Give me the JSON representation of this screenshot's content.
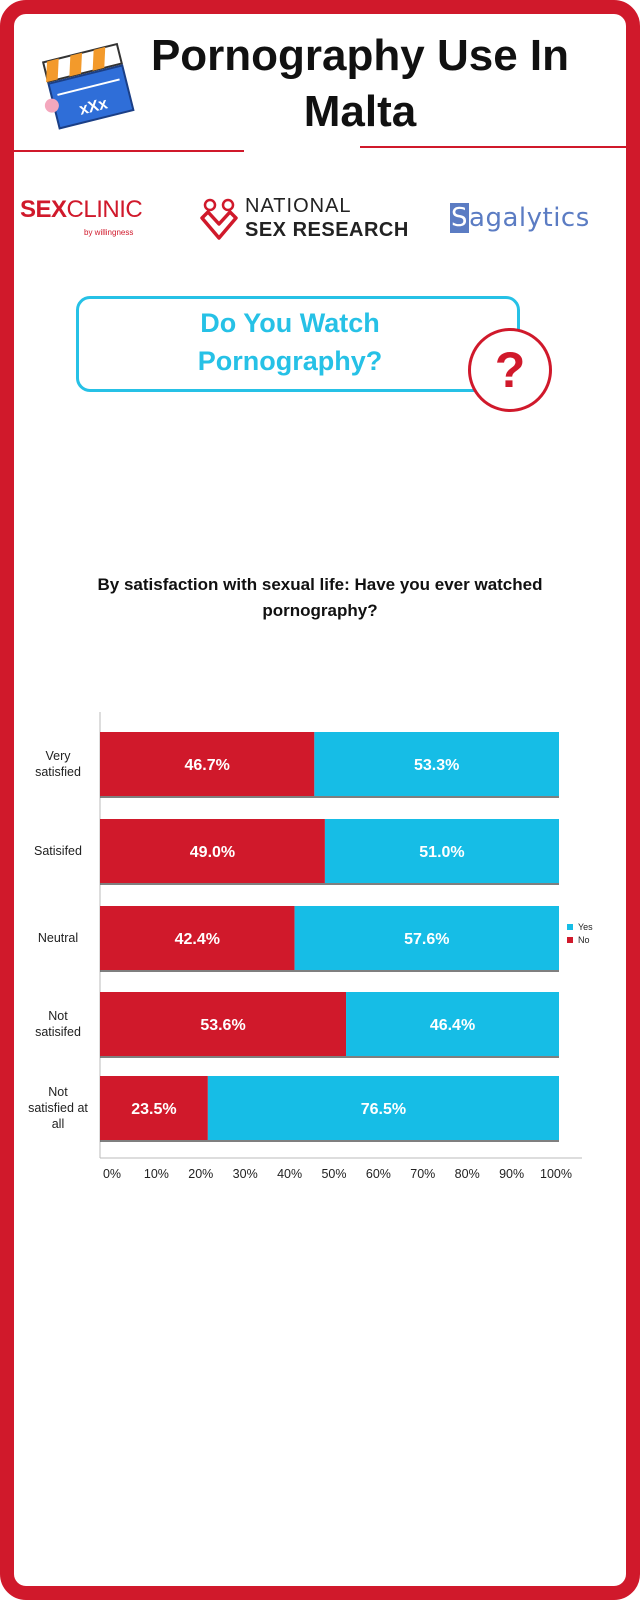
{
  "header": {
    "title_line1": "Pornography Use In",
    "title_line2": "Malta"
  },
  "logos": {
    "sexclinic_a": "SEX",
    "sexclinic_b": "CLINIC",
    "sexclinic_sub": "by willingness",
    "nsr_line1": "NATIONAL",
    "nsr_line2": "SEX RESEARCH",
    "sagalytics_cap": "S",
    "sagalytics_rest": "agalytics"
  },
  "question": {
    "line1": "Do You Watch",
    "line2": "Pornography?",
    "symbol": "?"
  },
  "colors": {
    "brand_red": "#d0192b",
    "accent_cyan": "#26c1e6",
    "no_color": "#d0192b",
    "yes_color": "#16bde6"
  },
  "chart_data": {
    "type": "bar",
    "orientation": "horizontal",
    "stacked": true,
    "title_line1": "By satisfaction with sexual life: Have you ever watched",
    "title_line2": "pornography?",
    "categories": [
      [
        "Very",
        "satisfied"
      ],
      [
        "Satisifed"
      ],
      [
        "Neutral"
      ],
      [
        "Not",
        "satisifed"
      ],
      [
        "Not",
        "satisfied at",
        "all"
      ]
    ],
    "series": [
      {
        "name": "No",
        "values": [
          46.7,
          49.0,
          42.4,
          53.6,
          23.5
        ],
        "color": "#d0192b"
      },
      {
        "name": "Yes",
        "values": [
          53.3,
          51.0,
          57.6,
          46.4,
          76.5
        ],
        "color": "#16bde6"
      }
    ],
    "value_labels": [
      [
        "46.7%",
        "53.3%"
      ],
      [
        "49.0%",
        "51.0%"
      ],
      [
        "42.4%",
        "57.6%"
      ],
      [
        "53.6%",
        "46.4%"
      ],
      [
        "23.5%",
        "76.5%"
      ]
    ],
    "xlim": [
      0,
      100
    ],
    "xticks": [
      "0%",
      "10%",
      "20%",
      "30%",
      "40%",
      "50%",
      "60%",
      "70%",
      "80%",
      "90%",
      "100%"
    ],
    "legend": {
      "placement": "right",
      "entries": [
        "Yes",
        "No"
      ]
    },
    "grid": false
  }
}
